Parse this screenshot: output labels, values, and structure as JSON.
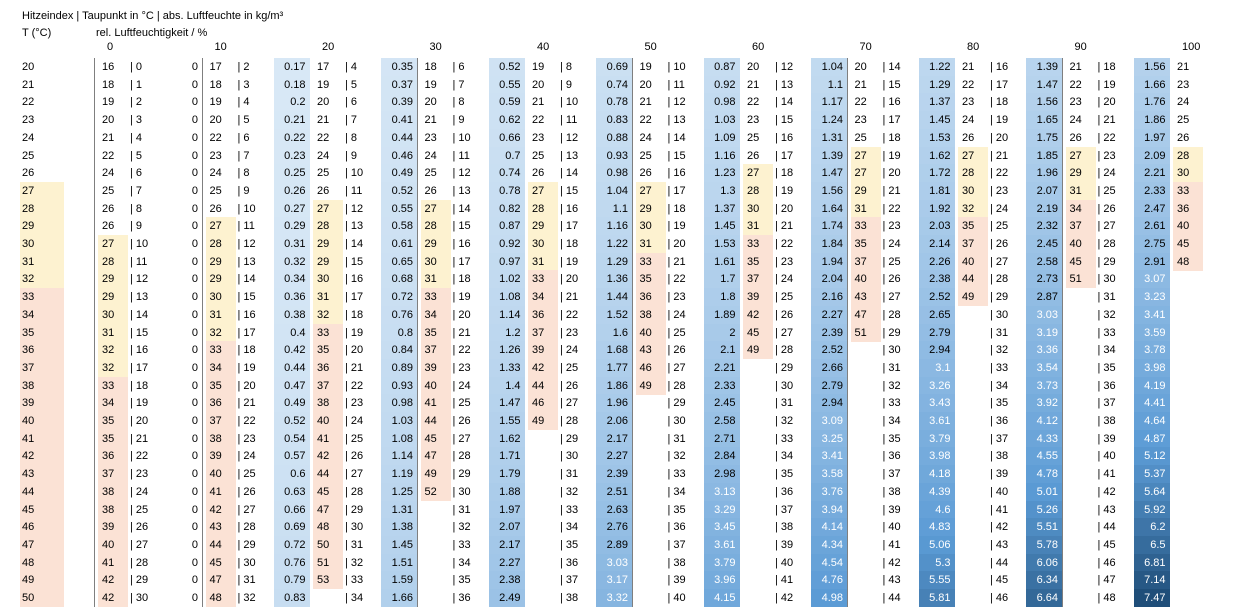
{
  "title": "Hitzeindex | Taupunkt in °C | abs. Luftfeuchte in kg/m³",
  "t_label": "T (°C)",
  "rh_label": "rel. Luftfeuchtigkeit / %",
  "rh_ticks": [
    "0",
    "10",
    "20",
    "30",
    "40",
    "50",
    "60",
    "70",
    "80",
    "90",
    "100"
  ],
  "temps": [
    "20",
    "21",
    "22",
    "23",
    "24",
    "25",
    "26",
    "27",
    "28",
    "29",
    "30",
    "31",
    "32",
    "33",
    "34",
    "35",
    "36",
    "37",
    "38",
    "39",
    "40",
    "41",
    "42",
    "43",
    "44",
    "45",
    "46",
    "47",
    "48",
    "49",
    "50"
  ],
  "right_col": [
    "21",
    "23",
    "24",
    "25",
    "26",
    "28",
    "30",
    "33",
    "36",
    "40",
    "45",
    "48"
  ],
  "hi": [
    [
      "16",
      "17",
      "17",
      "18",
      "19",
      "19",
      "20",
      "20",
      "21",
      "21"
    ],
    [
      "18",
      "18",
      "19",
      "19",
      "20",
      "20",
      "21",
      "21",
      "22",
      "22"
    ],
    [
      "19",
      "19",
      "20",
      "20",
      "21",
      "21",
      "22",
      "22",
      "23",
      "23"
    ],
    [
      "20",
      "20",
      "21",
      "21",
      "22",
      "22",
      "23",
      "23",
      "24",
      "24"
    ],
    [
      "21",
      "22",
      "22",
      "23",
      "23",
      "24",
      "25",
      "25",
      "26",
      "26"
    ],
    [
      "22",
      "23",
      "24",
      "24",
      "25",
      "25",
      "26",
      "27",
      "27",
      "27"
    ],
    [
      "24",
      "24",
      "25",
      "25",
      "26",
      "26",
      "27",
      "27",
      "28",
      "29"
    ],
    [
      "25",
      "25",
      "26",
      "26",
      "27",
      "27",
      "28",
      "29",
      "30",
      "31"
    ],
    [
      "26",
      "26",
      "27",
      "27",
      "28",
      "29",
      "30",
      "31",
      "32",
      "34"
    ],
    [
      "26",
      "27",
      "28",
      "28",
      "29",
      "30",
      "31",
      "33",
      "35",
      "37"
    ],
    [
      "27",
      "28",
      "29",
      "29",
      "30",
      "31",
      "33",
      "35",
      "37",
      "40"
    ],
    [
      "28",
      "29",
      "29",
      "30",
      "31",
      "33",
      "35",
      "37",
      "40",
      "45"
    ],
    [
      "29",
      "29",
      "30",
      "31",
      "33",
      "35",
      "37",
      "40",
      "44",
      "51"
    ],
    [
      "29",
      "30",
      "31",
      "33",
      "34",
      "36",
      "39",
      "43",
      "49",
      ""
    ],
    [
      "30",
      "31",
      "32",
      "34",
      "36",
      "38",
      "42",
      "47",
      "",
      ""
    ],
    [
      "31",
      "32",
      "33",
      "35",
      "37",
      "40",
      "45",
      "51",
      "",
      ""
    ],
    [
      "32",
      "33",
      "35",
      "37",
      "39",
      "43",
      "49",
      "",
      "",
      ""
    ],
    [
      "32",
      "34",
      "36",
      "39",
      "42",
      "46",
      "",
      "",
      "",
      ""
    ],
    [
      "33",
      "35",
      "37",
      "40",
      "44",
      "49",
      "",
      "",
      "",
      ""
    ],
    [
      "34",
      "36",
      "38",
      "41",
      "46",
      "",
      "",
      "",
      "",
      ""
    ],
    [
      "35",
      "37",
      "40",
      "44",
      "49",
      "",
      "",
      "",
      "",
      ""
    ],
    [
      "35",
      "38",
      "41",
      "45",
      "",
      "",
      "",
      "",
      "",
      ""
    ],
    [
      "36",
      "39",
      "42",
      "47",
      "",
      "",
      "",
      "",
      "",
      ""
    ],
    [
      "37",
      "40",
      "44",
      "49",
      "",
      "",
      "",
      "",
      "",
      ""
    ],
    [
      "38",
      "41",
      "45",
      "52",
      "",
      "",
      "",
      "",
      "",
      ""
    ],
    [
      "38",
      "42",
      "47",
      "",
      "",
      "",
      "",
      "",
      "",
      ""
    ],
    [
      "39",
      "43",
      "48",
      "",
      "",
      "",
      "",
      "",
      "",
      ""
    ],
    [
      "40",
      "44",
      "50",
      "",
      "",
      "",
      "",
      "",
      "",
      ""
    ],
    [
      "41",
      "45",
      "51",
      "",
      "",
      "",
      "",
      "",
      "",
      ""
    ],
    [
      "42",
      "47",
      "53",
      "",
      "",
      "",
      "",
      "",
      "",
      ""
    ],
    [
      "42",
      "48",
      "",
      "",
      "",
      "",
      "",
      "",
      "",
      ""
    ]
  ],
  "tp": [
    [
      "| 0",
      "| 2",
      "| 4",
      "| 6",
      "| 8",
      "| 10",
      "| 12",
      "| 14",
      "| 16",
      "| 18"
    ],
    [
      "| 1",
      "| 3",
      "| 5",
      "| 7",
      "| 9",
      "| 11",
      "| 13",
      "| 15",
      "| 17",
      "| 19"
    ],
    [
      "| 2",
      "| 4",
      "| 6",
      "| 8",
      "| 10",
      "| 12",
      "| 14",
      "| 16",
      "| 18",
      "| 20"
    ],
    [
      "| 3",
      "| 5",
      "| 7",
      "| 9",
      "| 11",
      "| 13",
      "| 15",
      "| 17",
      "| 19",
      "| 21"
    ],
    [
      "| 4",
      "| 6",
      "| 8",
      "| 10",
      "| 12",
      "| 14",
      "| 16",
      "| 18",
      "| 20",
      "| 22"
    ],
    [
      "| 5",
      "| 7",
      "| 9",
      "| 11",
      "| 13",
      "| 15",
      "| 17",
      "| 19",
      "| 21",
      "| 23"
    ],
    [
      "| 6",
      "| 8",
      "| 10",
      "| 12",
      "| 14",
      "| 16",
      "| 18",
      "| 20",
      "| 22",
      "| 24"
    ],
    [
      "| 7",
      "| 9",
      "| 11",
      "| 13",
      "| 15",
      "| 17",
      "| 19",
      "| 21",
      "| 23",
      "| 25"
    ],
    [
      "| 8",
      "| 10",
      "| 12",
      "| 14",
      "| 16",
      "| 18",
      "| 20",
      "| 22",
      "| 24",
      "| 26"
    ],
    [
      "| 9",
      "| 11",
      "| 13",
      "| 15",
      "| 17",
      "| 19",
      "| 21",
      "| 23",
      "| 25",
      "| 27"
    ],
    [
      "| 10",
      "| 12",
      "| 14",
      "| 16",
      "| 18",
      "| 20",
      "| 22",
      "| 24",
      "| 26",
      "| 28"
    ],
    [
      "| 11",
      "| 13",
      "| 15",
      "| 17",
      "| 19",
      "| 21",
      "| 23",
      "| 25",
      "| 27",
      "| 29"
    ],
    [
      "| 12",
      "| 14",
      "| 16",
      "| 18",
      "| 20",
      "| 22",
      "| 24",
      "| 26",
      "| 28",
      "| 30"
    ],
    [
      "| 13",
      "| 15",
      "| 17",
      "| 19",
      "| 21",
      "| 23",
      "| 25",
      "| 27",
      "| 29",
      "| 31"
    ],
    [
      "| 14",
      "| 16",
      "| 18",
      "| 20",
      "| 22",
      "| 24",
      "| 26",
      "| 28",
      "| 30",
      "| 32"
    ],
    [
      "| 15",
      "| 17",
      "| 19",
      "| 21",
      "| 23",
      "| 25",
      "| 27",
      "| 29",
      "| 31",
      "| 33"
    ],
    [
      "| 16",
      "| 18",
      "| 20",
      "| 22",
      "| 24",
      "| 26",
      "| 28",
      "| 30",
      "| 32",
      "| 34"
    ],
    [
      "| 17",
      "| 19",
      "| 21",
      "| 23",
      "| 25",
      "| 27",
      "| 29",
      "| 31",
      "| 33",
      "| 35"
    ],
    [
      "| 18",
      "| 20",
      "| 22",
      "| 24",
      "| 26",
      "| 28",
      "| 30",
      "| 32",
      "| 34",
      "| 36"
    ],
    [
      "| 19",
      "| 21",
      "| 23",
      "| 25",
      "| 27",
      "| 29",
      "| 31",
      "| 33",
      "| 35",
      "| 37"
    ],
    [
      "| 20",
      "| 22",
      "| 24",
      "| 26",
      "| 28",
      "| 30",
      "| 32",
      "| 34",
      "| 36",
      "| 38"
    ],
    [
      "| 21",
      "| 23",
      "| 25",
      "| 27",
      "| 29",
      "| 31",
      "| 33",
      "| 35",
      "| 37",
      "| 39"
    ],
    [
      "| 22",
      "| 24",
      "| 26",
      "| 28",
      "| 30",
      "| 32",
      "| 34",
      "| 36",
      "| 38",
      "| 40"
    ],
    [
      "| 23",
      "| 25",
      "| 27",
      "| 29",
      "| 31",
      "| 33",
      "| 35",
      "| 37",
      "| 39",
      "| 41"
    ],
    [
      "| 24",
      "| 26",
      "| 28",
      "| 30",
      "| 32",
      "| 34",
      "| 36",
      "| 38",
      "| 40",
      "| 42"
    ],
    [
      "| 25",
      "| 27",
      "| 29",
      "| 31",
      "| 33",
      "| 35",
      "| 37",
      "| 39",
      "| 41",
      "| 43"
    ],
    [
      "| 26",
      "| 28",
      "| 30",
      "| 32",
      "| 34",
      "| 36",
      "| 38",
      "| 40",
      "| 42",
      "| 44"
    ],
    [
      "| 27",
      "| 29",
      "| 31",
      "| 33",
      "| 35",
      "| 37",
      "| 39",
      "| 41",
      "| 43",
      "| 45"
    ],
    [
      "| 28",
      "| 30",
      "| 32",
      "| 34",
      "| 36",
      "| 38",
      "| 40",
      "| 42",
      "| 44",
      "| 46"
    ],
    [
      "| 29",
      "| 31",
      "| 33",
      "| 35",
      "| 37",
      "| 39",
      "| 41",
      "| 43",
      "| 45",
      "| 47"
    ],
    [
      "| 30",
      "| 32",
      "| 34",
      "| 36",
      "| 38",
      "| 40",
      "| 42",
      "| 44",
      "| 46",
      "| 48"
    ]
  ],
  "ah": [
    [
      "0",
      "0.17",
      "0.35",
      "0.52",
      "0.69",
      "0.87",
      "1.04",
      "1.22",
      "1.39",
      "1.56"
    ],
    [
      "0",
      "0.18",
      "0.37",
      "0.55",
      "0.74",
      "0.92",
      "1.1",
      "1.29",
      "1.47",
      "1.66"
    ],
    [
      "0",
      "0.2",
      "0.39",
      "0.59",
      "0.78",
      "0.98",
      "1.17",
      "1.37",
      "1.56",
      "1.76"
    ],
    [
      "0",
      "0.21",
      "0.41",
      "0.62",
      "0.83",
      "1.03",
      "1.24",
      "1.45",
      "1.65",
      "1.86"
    ],
    [
      "0",
      "0.22",
      "0.44",
      "0.66",
      "0.88",
      "1.09",
      "1.31",
      "1.53",
      "1.75",
      "1.97"
    ],
    [
      "0",
      "0.23",
      "0.46",
      "0.7",
      "0.93",
      "1.16",
      "1.39",
      "1.62",
      "1.85",
      "2.09"
    ],
    [
      "0",
      "0.25",
      "0.49",
      "0.74",
      "0.98",
      "1.23",
      "1.47",
      "1.72",
      "1.96",
      "2.21"
    ],
    [
      "0",
      "0.26",
      "0.52",
      "0.78",
      "1.04",
      "1.3",
      "1.56",
      "1.81",
      "2.07",
      "2.33"
    ],
    [
      "0",
      "0.27",
      "0.55",
      "0.82",
      "1.1",
      "1.37",
      "1.64",
      "1.92",
      "2.19",
      "2.47"
    ],
    [
      "0",
      "0.29",
      "0.58",
      "0.87",
      "1.16",
      "1.45",
      "1.74",
      "2.03",
      "2.32",
      "2.61"
    ],
    [
      "0",
      "0.31",
      "0.61",
      "0.92",
      "1.22",
      "1.53",
      "1.84",
      "2.14",
      "2.45",
      "2.75"
    ],
    [
      "0",
      "0.32",
      "0.65",
      "0.97",
      "1.29",
      "1.61",
      "1.94",
      "2.26",
      "2.58",
      "2.91"
    ],
    [
      "0",
      "0.34",
      "0.68",
      "1.02",
      "1.36",
      "1.7",
      "2.04",
      "2.38",
      "2.73",
      "3.07"
    ],
    [
      "0",
      "0.36",
      "0.72",
      "1.08",
      "1.44",
      "1.8",
      "2.16",
      "2.52",
      "2.87",
      "3.23"
    ],
    [
      "0",
      "0.38",
      "0.76",
      "1.14",
      "1.52",
      "1.89",
      "2.27",
      "2.65",
      "3.03",
      "3.41"
    ],
    [
      "0",
      "0.4",
      "0.8",
      "1.2",
      "1.6",
      "2",
      "2.39",
      "2.79",
      "3.19",
      "3.59"
    ],
    [
      "0",
      "0.42",
      "0.84",
      "1.26",
      "1.68",
      "2.1",
      "2.52",
      "2.94",
      "3.36",
      "3.78"
    ],
    [
      "0",
      "0.44",
      "0.89",
      "1.33",
      "1.77",
      "2.21",
      "2.66",
      "3.1",
      "3.54",
      "3.98"
    ],
    [
      "0",
      "0.47",
      "0.93",
      "1.4",
      "1.86",
      "2.33",
      "2.79",
      "3.26",
      "3.73",
      "4.19"
    ],
    [
      "0",
      "0.49",
      "0.98",
      "1.47",
      "1.96",
      "2.45",
      "2.94",
      "3.43",
      "3.92",
      "4.41"
    ],
    [
      "0",
      "0.52",
      "1.03",
      "1.55",
      "2.06",
      "2.58",
      "3.09",
      "3.61",
      "4.12",
      "4.64"
    ],
    [
      "0",
      "0.54",
      "1.08",
      "1.62",
      "2.17",
      "2.71",
      "3.25",
      "3.79",
      "4.33",
      "4.87"
    ],
    [
      "0",
      "0.57",
      "1.14",
      "1.71",
      "2.27",
      "2.84",
      "3.41",
      "3.98",
      "4.55",
      "5.12"
    ],
    [
      "0",
      "0.6",
      "1.19",
      "1.79",
      "2.39",
      "2.98",
      "3.58",
      "4.18",
      "4.78",
      "5.37"
    ],
    [
      "0",
      "0.63",
      "1.25",
      "1.88",
      "2.51",
      "3.13",
      "3.76",
      "4.39",
      "5.01",
      "5.64"
    ],
    [
      "0",
      "0.66",
      "1.31",
      "1.97",
      "2.63",
      "3.29",
      "3.94",
      "4.6",
      "5.26",
      "5.92"
    ],
    [
      "0",
      "0.69",
      "1.38",
      "2.07",
      "2.76",
      "3.45",
      "4.14",
      "4.83",
      "5.51",
      "6.2"
    ],
    [
      "0",
      "0.72",
      "1.45",
      "2.17",
      "2.89",
      "3.61",
      "4.34",
      "5.06",
      "5.78",
      "6.5"
    ],
    [
      "0",
      "0.76",
      "1.51",
      "2.27",
      "3.03",
      "3.79",
      "4.54",
      "5.3",
      "6.06",
      "6.81"
    ],
    [
      "0",
      "0.79",
      "1.59",
      "2.38",
      "3.17",
      "3.96",
      "4.76",
      "5.55",
      "6.34",
      "7.14"
    ],
    [
      "0",
      "0.83",
      "1.66",
      "2.49",
      "3.32",
      "4.15",
      "4.98",
      "5.81",
      "6.64",
      "7.47"
    ]
  ],
  "colors": {
    "caution": "#fdf2d0",
    "danger": "#fbe2d5",
    "blue_light": "#ddebf7",
    "blue_dark": "#1f4e79",
    "grid": "#7f7f7f"
  }
}
